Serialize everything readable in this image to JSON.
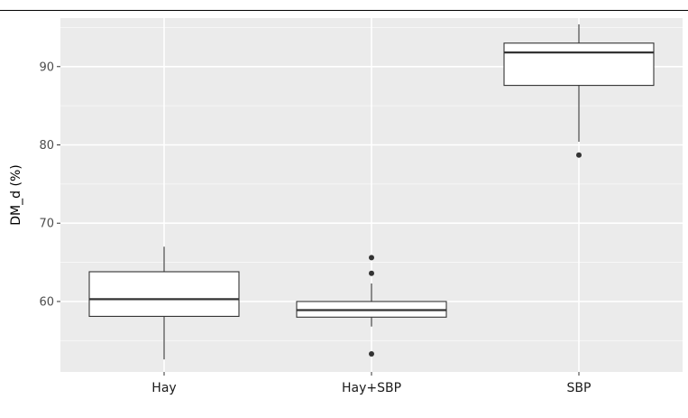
{
  "chart_data": {
    "type": "boxplot",
    "title": "",
    "xlabel": "",
    "ylabel": "DM_d (%)",
    "ylim": [
      51,
      96.2
    ],
    "yticks": [
      60,
      70,
      80,
      90
    ],
    "categories": [
      "Hay",
      "Hay+SBP",
      "SBP"
    ],
    "boxes": [
      {
        "category": "Hay",
        "whisker_low": 52.6,
        "q1": 58.1,
        "median": 60.3,
        "q3": 63.8,
        "whisker_high": 67.0,
        "outliers": []
      },
      {
        "category": "Hay+SBP",
        "whisker_low": 56.8,
        "q1": 58.0,
        "median": 58.9,
        "q3": 60.0,
        "whisker_high": 62.3,
        "outliers": [
          53.3,
          63.6,
          65.6
        ]
      },
      {
        "category": "SBP",
        "whisker_low": 80.4,
        "q1": 87.6,
        "median": 91.8,
        "q3": 93.0,
        "whisker_high": 95.4,
        "outliers": [
          78.7
        ]
      }
    ],
    "grid": true,
    "colors": {
      "panel": "#ebebeb",
      "grid_major": "#ffffff",
      "box_fill": "#ffffff",
      "box_line": "#333333"
    }
  }
}
